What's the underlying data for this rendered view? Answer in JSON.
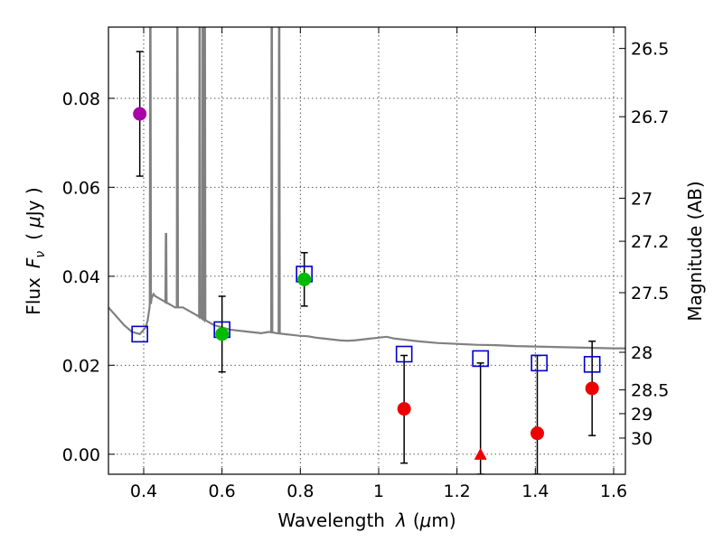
{
  "chart_data": {
    "type": "scatter",
    "xlabel_text": "Wavelength",
    "xlabel_symbol": "λ",
    "xlabel_unit_open": "(",
    "xlabel_unit_mu": "μ",
    "xlabel_unit_rest": "m)",
    "ylabel_text": "Flux",
    "ylabel_symbol": "F",
    "ylabel_subscript": "ν",
    "ylabel_unit_open": "(",
    "ylabel_unit_mu": "μ",
    "ylabel_unit_rest": "Jy )",
    "y2label": "Magnitude (AB)",
    "xlim": [
      0.31,
      1.63
    ],
    "ylim": [
      -0.0045,
      0.096
    ],
    "x_ticks": [
      0.4,
      0.6,
      0.8,
      1.0,
      1.2,
      1.4,
      1.6
    ],
    "x_tick_labels": [
      "0.4",
      "0.6",
      "0.8",
      "1",
      "1.2",
      "1.4",
      "1.6"
    ],
    "y_ticks": [
      0.0,
      0.02,
      0.04,
      0.06,
      0.08
    ],
    "y_tick_labels": [
      "0.00",
      "0.02",
      "0.04",
      "0.06",
      "0.08"
    ],
    "mag_ticks": [
      26.5,
      26.7,
      27,
      27.2,
      27.5,
      28,
      28.5,
      29,
      30
    ],
    "mag_tick_labels": [
      "26.5",
      "26.7",
      "27",
      "27.2",
      "27.5",
      "28",
      "28.5",
      "29",
      "30"
    ],
    "grid": true,
    "colors": {
      "template": "#808080",
      "model_box": "#0000cc",
      "errorbar": "#000000",
      "violet": "#aa00aa",
      "green": "#00bb00",
      "red": "#ee0000"
    },
    "template_sed": {
      "name": "best-fit template",
      "x": [
        0.31,
        0.33,
        0.35,
        0.37,
        0.39,
        0.405,
        0.41,
        0.415,
        0.42,
        0.425,
        0.43,
        0.44,
        0.45,
        0.46,
        0.47,
        0.48,
        0.49,
        0.5,
        0.52,
        0.54,
        0.56,
        0.58,
        0.6,
        0.62,
        0.64,
        0.66,
        0.68,
        0.7,
        0.72,
        0.74,
        0.76,
        0.78,
        0.8,
        0.82,
        0.84,
        0.86,
        0.88,
        0.9,
        0.92,
        0.94,
        0.96,
        0.98,
        1.0,
        1.02,
        1.04,
        1.06,
        1.08,
        1.1,
        1.15,
        1.2,
        1.25,
        1.3,
        1.35,
        1.4,
        1.45,
        1.5,
        1.55,
        1.6,
        1.63
      ],
      "y": [
        0.033,
        0.031,
        0.029,
        0.0275,
        0.027,
        0.0285,
        0.03,
        0.033,
        0.035,
        0.036,
        0.0355,
        0.035,
        0.0345,
        0.034,
        0.0335,
        0.033,
        0.033,
        0.033,
        0.032,
        0.031,
        0.03,
        0.029,
        0.0285,
        0.028,
        0.0278,
        0.0276,
        0.0274,
        0.0272,
        0.0275,
        0.0272,
        0.027,
        0.0268,
        0.0266,
        0.0265,
        0.0262,
        0.026,
        0.0258,
        0.0256,
        0.0255,
        0.0256,
        0.0258,
        0.026,
        0.0262,
        0.0264,
        0.026,
        0.0258,
        0.0256,
        0.0254,
        0.025,
        0.0248,
        0.0246,
        0.0245,
        0.0243,
        0.0242,
        0.0241,
        0.024,
        0.0239,
        0.0238,
        0.0238
      ],
      "emission_lines": [
        {
          "x": 0.417,
          "top": 0.096
        },
        {
          "x": 0.457,
          "top": 0.0495
        },
        {
          "x": 0.486,
          "top": 0.096
        },
        {
          "x": 0.543,
          "top": 0.096
        },
        {
          "x": 0.551,
          "top": 0.096
        },
        {
          "x": 0.556,
          "top": 0.096
        },
        {
          "x": 0.727,
          "top": 0.096
        },
        {
          "x": 0.746,
          "top": 0.096
        }
      ]
    },
    "model_fluxes": {
      "name": "template fluxes",
      "x": [
        0.39,
        0.6,
        0.81,
        1.065,
        1.26,
        1.41,
        1.545
      ],
      "y": [
        0.027,
        0.028,
        0.0405,
        0.0225,
        0.0215,
        0.0205,
        0.0202
      ]
    },
    "observations": [
      {
        "x": 0.39,
        "y": 0.0765,
        "err_low": 0.0625,
        "err_high": 0.0905,
        "marker": "circle",
        "color": "violet"
      },
      {
        "x": 0.6,
        "y": 0.027,
        "err_low": 0.0185,
        "err_high": 0.0355,
        "marker": "circle",
        "color": "green"
      },
      {
        "x": 0.81,
        "y": 0.0393,
        "err_low": 0.0333,
        "err_high": 0.0453,
        "marker": "circle",
        "color": "green"
      },
      {
        "x": 1.065,
        "y": 0.0102,
        "err_low": -0.002,
        "err_high": 0.0222,
        "marker": "circle",
        "color": "red"
      },
      {
        "x": 1.26,
        "y": 0.0,
        "err_low": -0.0045,
        "err_high": 0.0205,
        "marker": "triangle",
        "color": "red"
      },
      {
        "x": 1.405,
        "y": 0.0047,
        "err_low": -0.0045,
        "err_high": 0.0222,
        "marker": "circle",
        "color": "red"
      },
      {
        "x": 1.545,
        "y": 0.0148,
        "err_low": 0.0042,
        "err_high": 0.0254,
        "marker": "circle",
        "color": "red"
      }
    ]
  }
}
